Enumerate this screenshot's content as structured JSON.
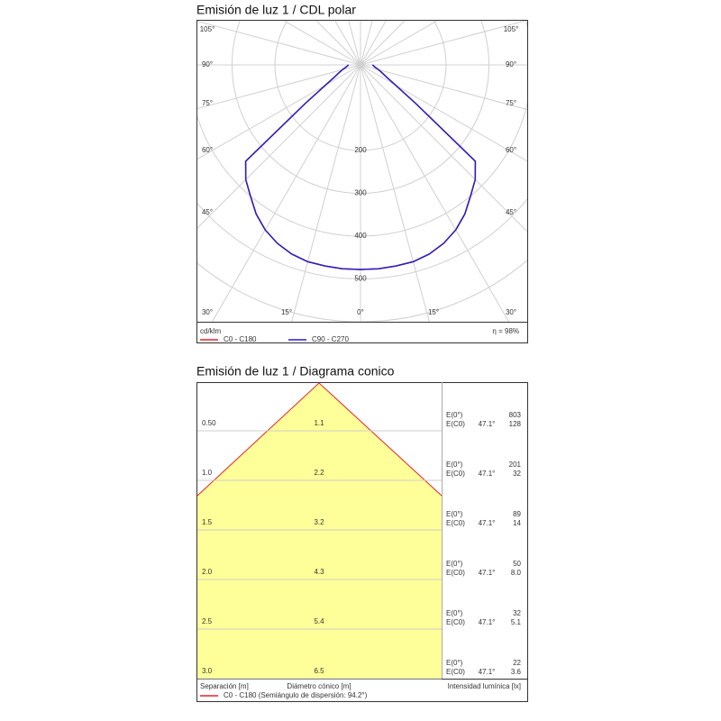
{
  "chart_data": [
    {
      "type": "polar",
      "title": "Emisión de luz 1 / CDL polar",
      "angles": [
        -90,
        -85,
        -80,
        -75,
        -70,
        -65,
        -60,
        -55,
        -50,
        -45,
        -40,
        -35,
        -30,
        -25,
        -20,
        -15,
        -10,
        -5,
        0,
        5,
        10,
        15,
        20,
        25,
        30,
        35,
        40,
        45,
        50,
        55,
        60,
        65,
        70,
        75,
        80,
        85,
        90
      ],
      "series": [
        {
          "name": "C0 - C180",
          "color": "#e8202a",
          "values": [
            28,
            31,
            36,
            44,
            53,
            67,
            94,
            158,
            350,
            379,
            400,
            425,
            445,
            460,
            470,
            476,
            477,
            478,
            478,
            478,
            477,
            476,
            470,
            460,
            445,
            425,
            400,
            379,
            350,
            158,
            94,
            67,
            53,
            44,
            36,
            31,
            28
          ]
        },
        {
          "name": "C90 - C270",
          "color": "#2a1fc4",
          "values": [
            28,
            31,
            36,
            44,
            53,
            67,
            94,
            158,
            350,
            379,
            400,
            425,
            445,
            460,
            470,
            476,
            477,
            478,
            478,
            478,
            477,
            476,
            470,
            460,
            445,
            425,
            400,
            379,
            350,
            158,
            94,
            67,
            53,
            44,
            36,
            31,
            28
          ]
        }
      ],
      "rlim": [
        0,
        600
      ],
      "rticks": [
        200,
        300,
        400,
        500
      ],
      "side_angle_labels": [
        "105°",
        "90°",
        "75°",
        "60°",
        "45°",
        "30°"
      ],
      "bottom_angle_labels": [
        "15°",
        "0°"
      ],
      "unit": "cd/klm",
      "efficiency": "η = 98%",
      "grid": true
    },
    {
      "type": "cone",
      "title": "Emisión de luz 1 / Diagrama conico",
      "e0_label": "E(0°)",
      "ec0_label": "E(C0)",
      "angle": "47.1°",
      "rows": [
        {
          "height": "0.50",
          "diameter": "1.1",
          "e0": "803",
          "ec0": "128"
        },
        {
          "height": "1.0",
          "diameter": "2.2",
          "e0": "201",
          "ec0": "32"
        },
        {
          "height": "1.5",
          "diameter": "3.2",
          "e0": "89",
          "ec0": "14"
        },
        {
          "height": "2.0",
          "diameter": "4.3",
          "e0": "50",
          "ec0": "8.0"
        },
        {
          "height": "2.5",
          "diameter": "5.4",
          "e0": "32",
          "ec0": "5.1"
        },
        {
          "height": "3.0",
          "diameter": "6.5",
          "e0": "22",
          "ec0": "3.6"
        }
      ],
      "footer": [
        "Separación [m]",
        "Diámetro cónico [m]",
        "Intensidad lumínica [lx]"
      ],
      "legend": "C0 - C180 (Semiángulo de dispersión: 94.2°)",
      "color": "#e8202a",
      "fill": "#ffff99"
    }
  ]
}
